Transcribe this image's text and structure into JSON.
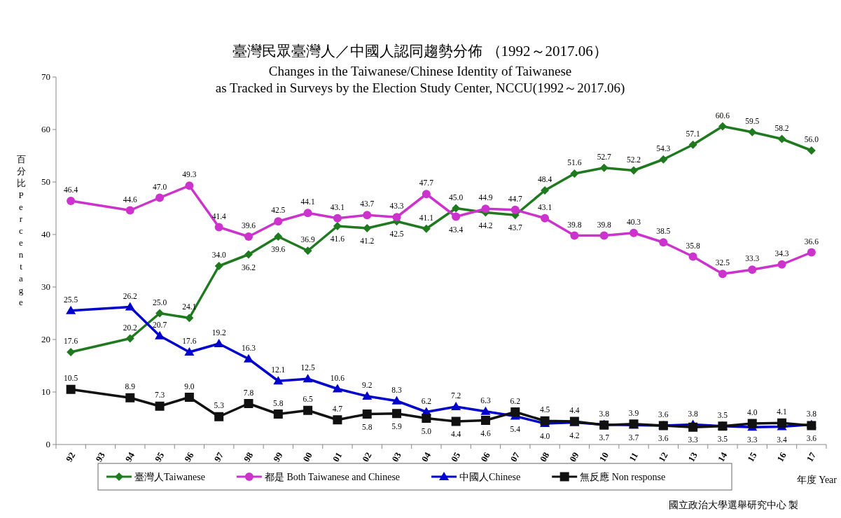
{
  "chart_data": {
    "type": "line",
    "title": "臺灣民眾臺灣人／中國人認同趨勢分佈 （1992～2017.06）",
    "subtitle": "Changes in the Taiwanese/Chinese Identity of Taiwanese\nas Tracked in Surveys by the Election Study Center, NCCU(1992～2017.06)",
    "ylabel": "百分比 Percentage",
    "xlabel": "年度 Year",
    "annotations": [
      "國立政治大學選舉研究中心 製"
    ],
    "categories": [
      "92",
      "93",
      "94",
      "95",
      "96",
      "97",
      "98",
      "99",
      "00",
      "01",
      "02",
      "03",
      "04",
      "05",
      "06",
      "07",
      "08",
      "09",
      "10",
      "11",
      "12",
      "13",
      "14",
      "15",
      "16",
      "17"
    ],
    "ylim": [
      0,
      70
    ],
    "yticks": [
      0,
      10,
      20,
      30,
      40,
      50,
      60,
      70
    ],
    "grid": false,
    "legend": "bottom",
    "series": [
      {
        "name": "臺灣人Taiwanese",
        "color": "#1f7a1f",
        "marker": "diamond",
        "values": [
          17.6,
          null,
          20.2,
          25.0,
          24.1,
          34.0,
          36.2,
          39.6,
          36.9,
          41.6,
          41.2,
          42.5,
          41.1,
          45.0,
          44.2,
          43.7,
          48.4,
          51.6,
          52.7,
          52.2,
          54.3,
          57.1,
          60.6,
          59.5,
          58.2,
          56.0
        ],
        "value_labels": [
          "17.6",
          null,
          "20.2",
          "25.0",
          "24.1",
          "34.0",
          "36.2",
          "39.6",
          "36.9",
          "41.6",
          "41.2",
          "42.5",
          "41.1",
          "45.0",
          "44.2",
          "43.7",
          "48.4",
          "51.6",
          "52.7",
          "52.2",
          "54.3",
          "57.1",
          "60.6",
          "59.5",
          "58.2",
          "56.0"
        ]
      },
      {
        "name": "都是 Both Taiwanese and Chinese",
        "color": "#cc33cc",
        "marker": "circle",
        "values": [
          46.4,
          null,
          44.6,
          47.0,
          49.3,
          41.4,
          39.6,
          42.5,
          44.1,
          43.1,
          43.7,
          43.3,
          47.7,
          43.4,
          44.9,
          44.7,
          43.1,
          39.8,
          39.8,
          40.3,
          38.5,
          35.8,
          32.5,
          33.3,
          34.3,
          36.6
        ],
        "value_labels": [
          "46.4",
          null,
          "44.6",
          "47.0",
          "49.3",
          "41.4",
          "39.6",
          "42.5",
          "44.1",
          "43.1",
          "43.7",
          "43.3",
          "47.7",
          "43.4",
          "44.9",
          "44.7",
          "43.1",
          "39.8",
          "39.8",
          "40.3",
          "38.5",
          "35.8",
          "32.5",
          "33.3",
          "34.3",
          "36.6"
        ]
      },
      {
        "name": "中國人Chinese",
        "color": "#0000cc",
        "marker": "triangle",
        "values": [
          25.5,
          null,
          26.2,
          20.7,
          17.6,
          19.2,
          16.3,
          12.1,
          12.5,
          10.6,
          9.2,
          8.3,
          6.2,
          7.2,
          6.3,
          5.4,
          4.0,
          4.2,
          3.8,
          3.7,
          3.6,
          3.8,
          3.5,
          3.3,
          3.4,
          3.8
        ],
        "value_labels": [
          "25.5",
          null,
          "26.2",
          "20.7",
          "17.6",
          "19.2",
          "16.3",
          "12.1",
          "12.5",
          "10.6",
          "9.2",
          "8.3",
          "6.2",
          "7.2",
          "6.3",
          "5.4",
          "4.0",
          "4.2",
          "3.8",
          "3.7",
          "3.6",
          "3.8",
          "3.5",
          "3.3",
          "3.4",
          "3.8"
        ]
      },
      {
        "name": "無反應 Non response",
        "color": "#111111",
        "marker": "square",
        "values": [
          10.5,
          null,
          8.9,
          7.3,
          9.0,
          5.3,
          7.8,
          5.8,
          6.5,
          4.7,
          5.8,
          5.9,
          5.0,
          4.4,
          4.6,
          6.2,
          4.5,
          4.4,
          3.7,
          3.9,
          3.6,
          3.3,
          3.5,
          4.0,
          4.1,
          3.6
        ],
        "value_labels": [
          "10.5",
          null,
          "8.9",
          "7.3",
          "9.0",
          "5.3",
          "7.8",
          "5.8",
          "6.5",
          "4.7",
          "5.8",
          "5.9",
          "5.0",
          "4.4",
          "4.6",
          "6.2",
          "4.5",
          "4.4",
          "3.7",
          "3.9",
          "3.6",
          "3.3",
          "3.5",
          "4.0",
          "4.1",
          "3.6"
        ]
      }
    ]
  }
}
